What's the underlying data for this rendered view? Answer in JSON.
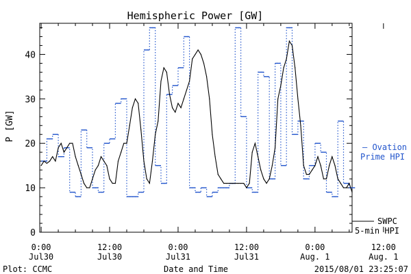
{
  "chart_data": {
    "type": "line",
    "title": "Hemispheric Power [GW]",
    "ylabel": "P [GW]",
    "xlabel": "Date and Time",
    "footer_left": "Plot: CCMC",
    "footer_right": "2015/08/01 23:25:07",
    "ylim": [
      0,
      47
    ],
    "xlim": [
      -0.25,
      54.5
    ],
    "y_ticks": [
      0,
      10,
      20,
      30,
      40
    ],
    "x_ticks": [
      {
        "x": 0,
        "time": "0:00",
        "date": "Jul30"
      },
      {
        "x": 12,
        "time": "12:00",
        "date": "Jul30"
      },
      {
        "x": 24,
        "time": "0:00",
        "date": "Jul31"
      },
      {
        "x": 36,
        "time": "12:00",
        "date": "Jul31"
      },
      {
        "x": 48,
        "time": "0:00",
        "date": "Aug. 1"
      },
      {
        "x": 60,
        "time": "12:00",
        "date": "Aug. 1"
      }
    ],
    "series": [
      {
        "name": "SWPC 5-min HPI",
        "color": "#000000",
        "style": "solid",
        "x": [
          0,
          0.5,
          1,
          1.5,
          2,
          2.5,
          3,
          3.5,
          4,
          4.5,
          5,
          5.5,
          6,
          6.5,
          7,
          7.5,
          8,
          8.5,
          9,
          9.5,
          10,
          10.5,
          11,
          11.5,
          12,
          12.5,
          13,
          13.5,
          14,
          14.5,
          15,
          15.5,
          16,
          16.5,
          17,
          17.5,
          18,
          18.5,
          19,
          19.5,
          20,
          20.5,
          21,
          21.5,
          22,
          22.5,
          23,
          23.5,
          24,
          24.5,
          25,
          25.5,
          26,
          26.5,
          27,
          27.5,
          28,
          28.5,
          29,
          29.5,
          30,
          30.5,
          31,
          31.5,
          32,
          32.5,
          33,
          33.5,
          34,
          34.5,
          35,
          35.5,
          36,
          36.5,
          37,
          37.5,
          38,
          38.5,
          39,
          39.5,
          40,
          40.5,
          41,
          41.5,
          42,
          42.5,
          43,
          43.5,
          44,
          44.5,
          45,
          45.5,
          46,
          46.5,
          47,
          47.5,
          48,
          48.5,
          49,
          49.5,
          50,
          50.5,
          51,
          51.5,
          52,
          52.5,
          53,
          53.5,
          54,
          54.5
        ],
        "values": [
          15,
          16,
          15.5,
          16,
          17,
          16,
          19,
          20,
          18,
          19,
          20,
          20,
          17,
          15,
          13,
          11,
          10,
          10,
          12,
          14,
          15,
          17,
          16,
          15,
          12,
          11,
          11,
          16,
          18,
          20,
          20,
          24,
          28,
          30,
          29,
          23,
          16,
          12,
          11,
          16,
          22,
          25,
          34,
          37,
          36,
          31,
          28,
          27,
          29,
          28,
          30,
          32,
          34,
          39,
          40,
          41,
          40,
          38,
          35,
          30,
          22,
          17,
          13,
          12,
          11,
          11,
          11,
          11,
          11,
          11,
          11,
          11,
          10,
          11,
          18,
          20,
          17,
          14,
          12,
          11,
          12,
          15,
          19,
          30,
          33,
          37,
          39,
          43,
          42,
          37,
          30,
          24,
          15,
          13,
          13,
          14,
          15,
          17,
          15,
          12,
          12,
          15,
          17,
          15,
          12,
          11,
          10,
          10,
          11,
          9
        ],
        "label_line1": "SWPC",
        "label_line2": "5-min HPI"
      },
      {
        "name": "Ovation Prime HPI",
        "color": "#2255cc",
        "style": "dotted-step",
        "x": [
          0,
          1,
          2,
          3,
          4,
          5,
          6,
          7,
          8,
          9,
          10,
          11,
          12,
          13,
          14,
          15,
          16,
          17,
          18,
          19,
          20,
          21,
          22,
          23,
          24,
          25,
          26,
          27,
          28,
          29,
          30,
          31,
          32,
          33,
          34,
          35,
          36,
          37,
          38,
          39,
          40,
          41,
          42,
          43,
          44,
          45,
          46,
          47,
          48,
          49,
          50,
          51,
          52,
          53,
          54
        ],
        "values": [
          16,
          21,
          22,
          17,
          19,
          9,
          8,
          23,
          19,
          10,
          9,
          20,
          21,
          29,
          30,
          8,
          8,
          9,
          41,
          46,
          15,
          11,
          31,
          33,
          37,
          44,
          10,
          9,
          10,
          8,
          9,
          10,
          10,
          11,
          46,
          26,
          10,
          9,
          36,
          35,
          12,
          38,
          15,
          46,
          22,
          25,
          12,
          15,
          20,
          18,
          9,
          8,
          25,
          11,
          10
        ],
        "label_line1": "— Ovation",
        "label_line2": "Prime HPI"
      }
    ],
    "grid": false,
    "legend": "right"
  }
}
